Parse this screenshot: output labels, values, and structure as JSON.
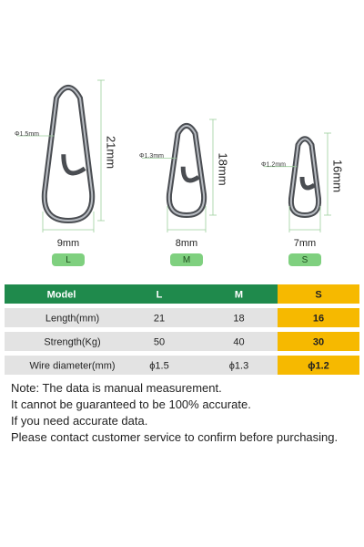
{
  "products": [
    {
      "diameter": "Φ1.5mm",
      "length": "21mm",
      "width": "9mm",
      "size": "L"
    },
    {
      "diameter": "Φ1.3mm",
      "length": "18mm",
      "width": "8mm",
      "size": "M"
    },
    {
      "diameter": "Φ1.2mm",
      "length": "16mm",
      "width": "7mm",
      "size": "S"
    }
  ],
  "table": {
    "header": [
      "Model",
      "L",
      "M",
      "S"
    ],
    "rows": [
      [
        "Length(mm)",
        21,
        18,
        16
      ],
      [
        "Strength(Kg)",
        50,
        40,
        30
      ],
      [
        "Wire diameter(mm)",
        "ϕ1.5",
        "ϕ1.3",
        "ϕ1.2"
      ]
    ]
  },
  "notes": [
    "Note: The data is manual measurement.",
    "It cannot be guaranteed to be 100% accurate.",
    "If you need accurate data.",
    "Please contact customer service to confirm before purchasing."
  ]
}
